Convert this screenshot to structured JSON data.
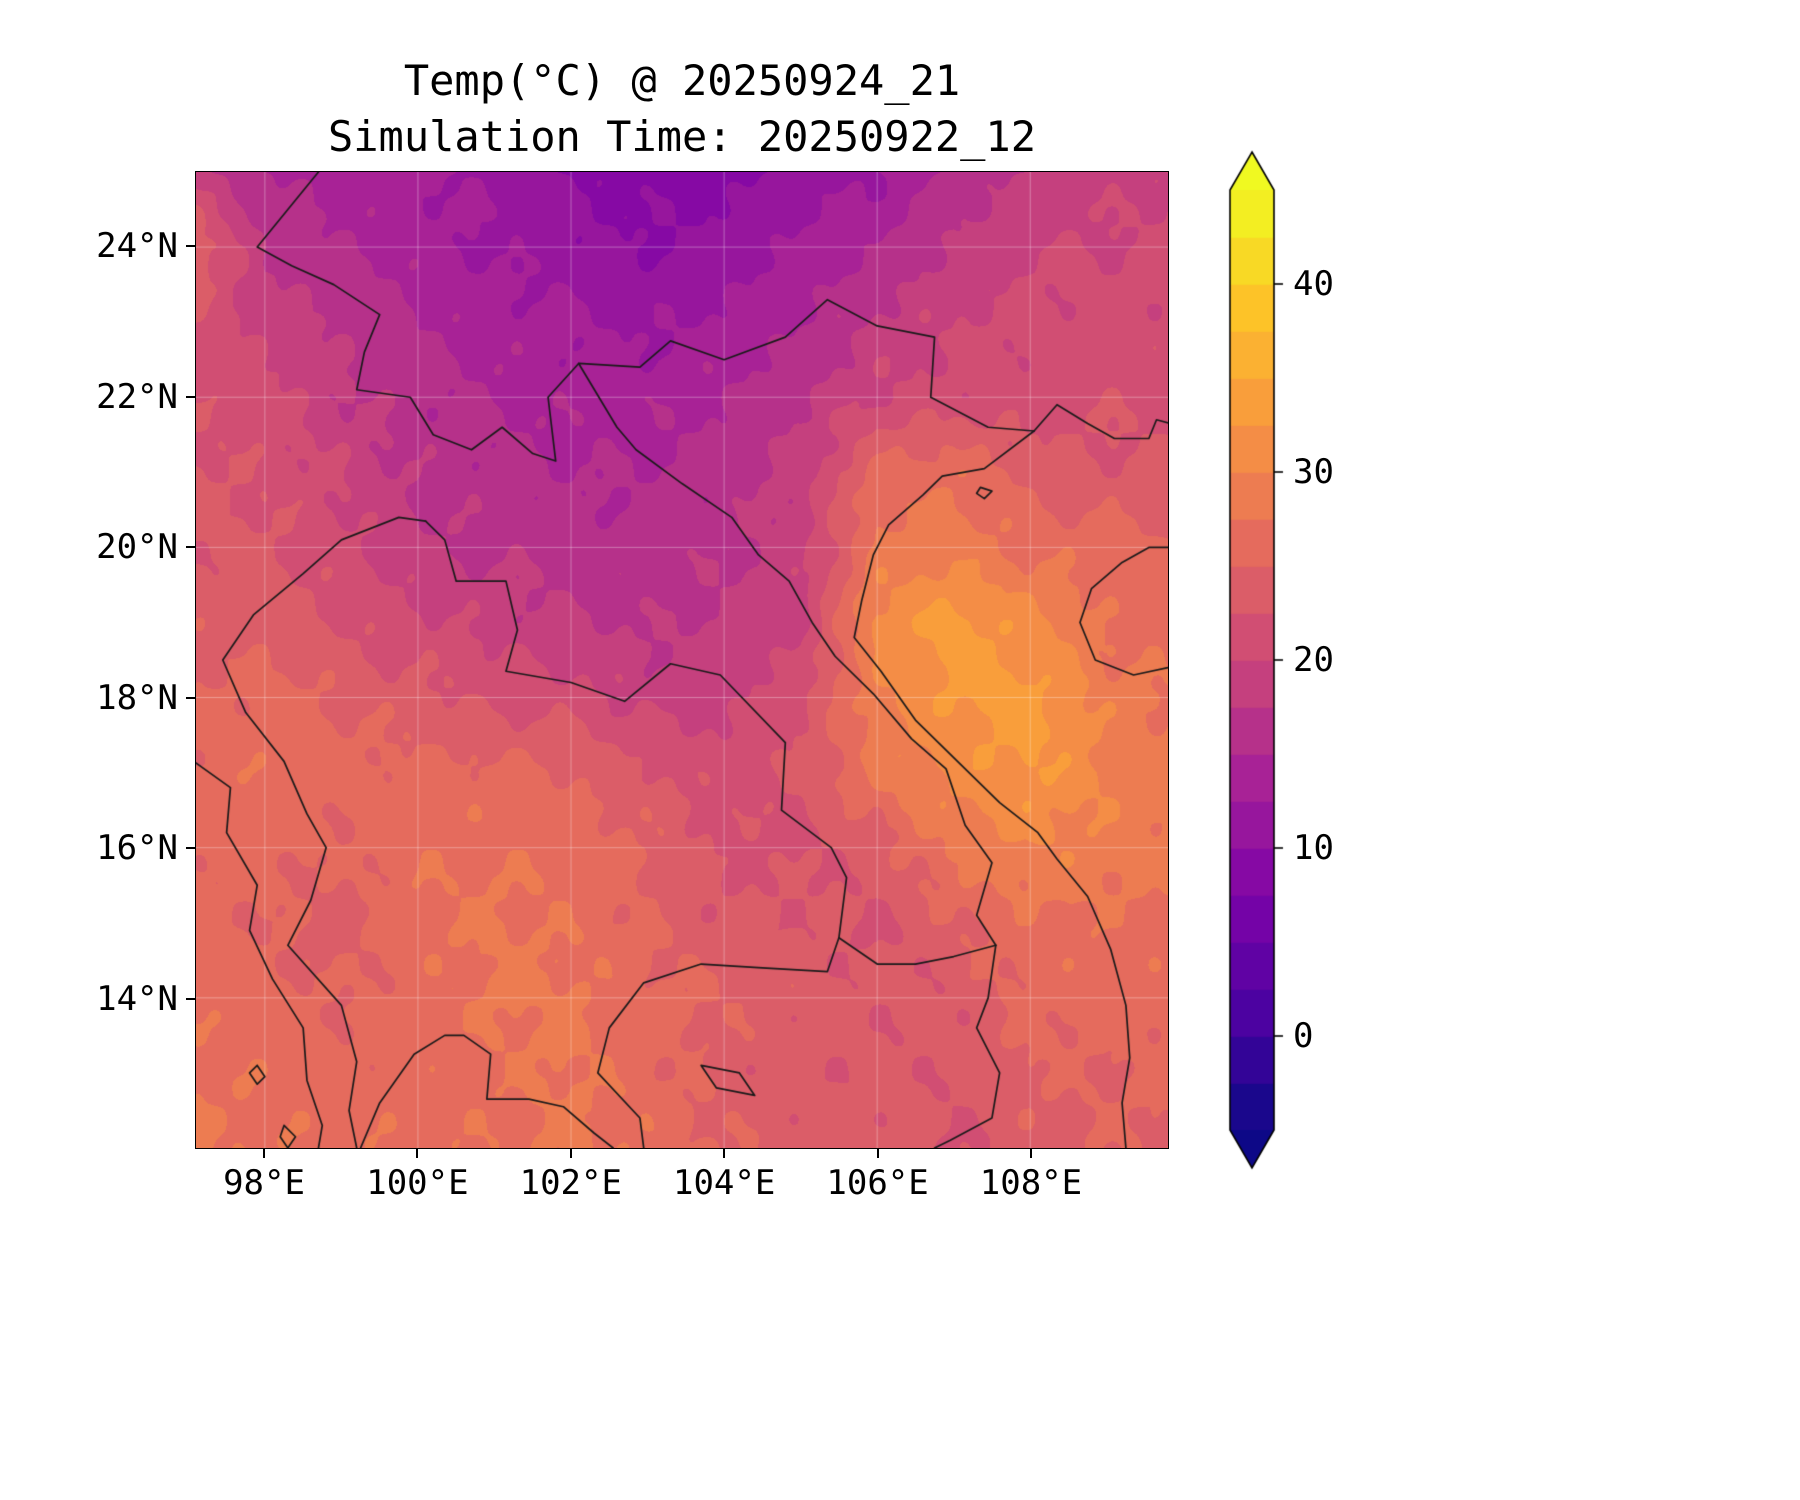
{
  "chart_data": {
    "type": "heatmap",
    "title": "Temp(°C) @ 20250924_21",
    "subtitle": "Simulation Time: 20250922_12",
    "lon_range": [
      97.1,
      109.8
    ],
    "lat_range": [
      12.0,
      25.0
    ],
    "x_axis": {
      "ticks": [
        {
          "value": 98,
          "label": "98°E"
        },
        {
          "value": 100,
          "label": "100°E"
        },
        {
          "value": 102,
          "label": "102°E"
        },
        {
          "value": 104,
          "label": "104°E"
        },
        {
          "value": 106,
          "label": "106°E"
        },
        {
          "value": 108,
          "label": "108°E"
        }
      ]
    },
    "y_axis": {
      "ticks": [
        {
          "value": 24,
          "label": "24°N"
        },
        {
          "value": 22,
          "label": "22°N"
        },
        {
          "value": 20,
          "label": "20°N"
        },
        {
          "value": 18,
          "label": "18°N"
        },
        {
          "value": 16,
          "label": "16°N"
        },
        {
          "value": 14,
          "label": "14°N"
        }
      ]
    },
    "contour_levels": {
      "min": -5,
      "max": 45,
      "step": 2.5
    },
    "colormap": {
      "name": "plasma",
      "stops": [
        [
          0.0,
          "#0d0887"
        ],
        [
          0.125,
          "#4c02a1"
        ],
        [
          0.25,
          "#7e03a8"
        ],
        [
          0.375,
          "#a82296"
        ],
        [
          0.5,
          "#cc4778"
        ],
        [
          0.625,
          "#e56b5d"
        ],
        [
          0.75,
          "#f89540"
        ],
        [
          0.875,
          "#fdc328"
        ],
        [
          1.0,
          "#f0f921"
        ]
      ]
    },
    "colorbar": {
      "extend": "both",
      "ticks": [
        {
          "value": 40,
          "label": "40"
        },
        {
          "value": 30,
          "label": "30"
        },
        {
          "value": 20,
          "label": "20"
        },
        {
          "value": 10,
          "label": "10"
        },
        {
          "value": 0,
          "label": "0"
        }
      ]
    },
    "grid": {
      "lons": [
        97,
        98,
        99,
        100,
        101,
        102,
        103,
        104,
        105,
        106,
        107,
        108,
        109,
        110
      ],
      "lats": [
        25,
        24,
        23,
        22,
        21,
        20,
        19,
        18,
        17,
        16,
        15,
        14,
        13,
        12
      ],
      "values": [
        [
          19,
          15,
          14,
          13,
          12,
          10,
          9,
          9,
          11,
          12,
          16,
          18,
          19,
          20
        ],
        [
          26,
          17,
          15,
          14,
          12,
          11,
          10,
          11,
          13,
          15,
          18,
          20,
          20,
          21
        ],
        [
          22,
          19,
          17,
          15,
          14,
          13,
          12,
          13,
          15,
          18,
          20,
          21,
          21,
          21
        ],
        [
          22,
          21,
          18,
          16,
          15,
          14,
          14,
          15,
          17,
          20,
          21,
          21,
          22,
          22
        ],
        [
          23,
          22,
          20,
          17,
          16,
          15,
          15,
          16,
          19,
          26,
          27,
          24,
          23,
          23
        ],
        [
          23,
          23,
          21,
          18,
          17,
          16,
          16,
          17,
          19,
          28,
          29,
          27,
          26,
          25
        ],
        [
          24,
          24,
          22,
          21,
          19,
          18,
          17,
          18,
          19,
          31,
          33.5,
          31,
          27,
          26
        ],
        [
          25,
          26,
          25,
          23,
          22,
          21,
          19,
          19,
          22,
          29,
          33,
          33.5,
          29,
          27
        ],
        [
          26,
          27,
          26,
          26,
          26,
          25,
          23,
          21,
          23,
          28,
          31,
          33,
          30,
          28
        ],
        [
          26,
          26,
          25,
          27,
          27,
          27,
          25,
          22,
          22,
          24,
          28,
          30,
          29,
          28
        ],
        [
          26,
          25,
          24,
          27,
          28,
          27,
          25,
          23,
          23,
          22,
          25,
          27,
          27,
          27
        ],
        [
          27,
          26,
          25,
          26,
          28,
          28,
          26,
          25,
          24,
          23,
          23,
          26,
          26,
          26
        ],
        [
          27,
          27,
          26,
          26,
          27,
          28,
          26,
          24,
          23,
          23,
          23,
          25,
          25,
          26
        ],
        [
          28,
          27,
          27,
          27,
          27,
          28,
          27,
          25,
          24,
          24,
          22,
          24,
          25,
          25
        ]
      ]
    },
    "borders": {
      "color": "#1a1a1a",
      "polylines": [
        [
          [
            98.7,
            25.0
          ],
          [
            98.3,
            24.5
          ],
          [
            97.9,
            24.0
          ],
          [
            98.35,
            23.75
          ],
          [
            98.9,
            23.5
          ],
          [
            99.5,
            23.1
          ],
          [
            99.3,
            22.6
          ],
          [
            99.2,
            22.1
          ],
          [
            99.9,
            22.0
          ],
          [
            100.2,
            21.5
          ],
          [
            100.7,
            21.3
          ],
          [
            101.1,
            21.6
          ],
          [
            101.5,
            21.25
          ],
          [
            101.8,
            21.15
          ],
          [
            101.7,
            22.0
          ],
          [
            102.1,
            22.45
          ],
          [
            102.9,
            22.4
          ],
          [
            103.3,
            22.75
          ],
          [
            104.0,
            22.5
          ],
          [
            104.8,
            22.8
          ],
          [
            105.35,
            23.3
          ],
          [
            106.0,
            22.95
          ],
          [
            106.75,
            22.8
          ],
          [
            106.7,
            22.0
          ],
          [
            107.45,
            21.6
          ],
          [
            108.05,
            21.55
          ]
        ],
        [
          [
            108.05,
            21.55
          ],
          [
            107.4,
            21.05
          ],
          [
            106.85,
            20.95
          ],
          [
            106.6,
            20.7
          ],
          [
            106.15,
            20.3
          ],
          [
            105.95,
            19.9
          ],
          [
            105.8,
            19.3
          ],
          [
            105.7,
            18.8
          ],
          [
            106.05,
            18.35
          ],
          [
            106.5,
            17.7
          ],
          [
            107.05,
            17.15
          ],
          [
            107.6,
            16.6
          ],
          [
            108.1,
            16.2
          ],
          [
            108.35,
            15.85
          ],
          [
            108.75,
            15.35
          ],
          [
            109.05,
            14.65
          ],
          [
            109.25,
            13.9
          ],
          [
            109.3,
            13.2
          ],
          [
            109.2,
            12.6
          ],
          [
            109.25,
            12.0
          ]
        ],
        [
          [
            100.1,
            20.35
          ],
          [
            99.75,
            20.4
          ],
          [
            99.0,
            20.1
          ],
          [
            98.5,
            19.65
          ],
          [
            97.85,
            19.1
          ],
          [
            97.45,
            18.5
          ],
          [
            97.75,
            17.8
          ],
          [
            98.25,
            17.15
          ],
          [
            98.55,
            16.45
          ],
          [
            98.8,
            16.0
          ],
          [
            98.6,
            15.3
          ],
          [
            98.3,
            14.7
          ],
          [
            99.0,
            13.9
          ],
          [
            99.2,
            13.15
          ],
          [
            99.1,
            12.5
          ],
          [
            99.2,
            12.0
          ]
        ],
        [
          [
            97.0,
            17.2
          ],
          [
            97.55,
            16.8
          ],
          [
            97.5,
            16.2
          ],
          [
            97.9,
            15.5
          ],
          [
            97.8,
            14.9
          ],
          [
            98.1,
            14.25
          ],
          [
            98.5,
            13.6
          ],
          [
            98.55,
            12.9
          ],
          [
            98.75,
            12.3
          ],
          [
            98.7,
            12.0
          ]
        ],
        [
          [
            98.25,
            12.3
          ],
          [
            98.4,
            12.15
          ],
          [
            98.3,
            12.0
          ],
          [
            98.2,
            12.15
          ],
          [
            98.25,
            12.3
          ]
        ],
        [
          [
            97.9,
            13.1
          ],
          [
            98.0,
            12.95
          ],
          [
            97.9,
            12.85
          ],
          [
            97.8,
            13.0
          ],
          [
            97.9,
            13.1
          ]
        ],
        [
          [
            100.1,
            20.35
          ],
          [
            100.35,
            20.1
          ],
          [
            100.5,
            19.55
          ],
          [
            101.15,
            19.55
          ],
          [
            101.3,
            18.9
          ],
          [
            101.15,
            18.35
          ],
          [
            102.0,
            18.2
          ],
          [
            102.7,
            17.95
          ],
          [
            103.3,
            18.45
          ],
          [
            103.95,
            18.3
          ],
          [
            104.8,
            17.4
          ],
          [
            104.75,
            16.5
          ],
          [
            105.4,
            16.0
          ],
          [
            105.6,
            15.6
          ],
          [
            105.5,
            14.8
          ]
        ],
        [
          [
            102.1,
            22.45
          ],
          [
            102.6,
            21.6
          ],
          [
            102.85,
            21.3
          ],
          [
            103.45,
            20.85
          ],
          [
            104.1,
            20.4
          ],
          [
            104.45,
            19.9
          ],
          [
            104.85,
            19.55
          ],
          [
            105.15,
            19.0
          ],
          [
            105.45,
            18.55
          ],
          [
            105.95,
            18.05
          ],
          [
            106.45,
            17.45
          ],
          [
            106.9,
            17.05
          ],
          [
            107.15,
            16.3
          ],
          [
            107.5,
            15.8
          ],
          [
            107.3,
            15.1
          ],
          [
            107.55,
            14.7
          ]
        ],
        [
          [
            105.5,
            14.8
          ],
          [
            106.0,
            14.45
          ],
          [
            106.5,
            14.45
          ],
          [
            107.0,
            14.55
          ],
          [
            107.55,
            14.7
          ]
        ],
        [
          [
            105.5,
            14.8
          ],
          [
            105.35,
            14.35
          ],
          [
            104.5,
            14.4
          ],
          [
            103.7,
            14.45
          ],
          [
            102.95,
            14.2
          ],
          [
            102.5,
            13.6
          ],
          [
            102.35,
            13.0
          ],
          [
            102.9,
            12.4
          ],
          [
            102.95,
            12.0
          ]
        ],
        [
          [
            107.55,
            14.7
          ],
          [
            107.45,
            14.0
          ],
          [
            107.3,
            13.6
          ],
          [
            107.6,
            13.0
          ],
          [
            107.5,
            12.4
          ],
          [
            106.95,
            12.1
          ],
          [
            106.75,
            12.0
          ]
        ],
        [
          [
            99.25,
            12.0
          ],
          [
            99.5,
            12.6
          ],
          [
            99.95,
            13.25
          ],
          [
            100.35,
            13.5
          ],
          [
            100.6,
            13.5
          ],
          [
            100.95,
            13.25
          ],
          [
            100.9,
            12.65
          ],
          [
            101.45,
            12.65
          ],
          [
            101.9,
            12.55
          ],
          [
            102.3,
            12.2
          ],
          [
            102.55,
            12.0
          ]
        ],
        [
          [
            108.05,
            21.55
          ],
          [
            108.35,
            21.9
          ],
          [
            108.75,
            21.65
          ],
          [
            109.1,
            21.45
          ],
          [
            109.55,
            21.45
          ],
          [
            109.65,
            21.7
          ],
          [
            110.0,
            21.6
          ]
        ],
        [
          [
            110.0,
            20.0
          ],
          [
            109.55,
            20.0
          ],
          [
            109.2,
            19.8
          ],
          [
            108.8,
            19.45
          ],
          [
            108.65,
            19.0
          ],
          [
            108.85,
            18.5
          ],
          [
            109.35,
            18.3
          ],
          [
            109.8,
            18.4
          ],
          [
            110.0,
            18.55
          ]
        ],
        [
          [
            107.35,
            20.8
          ],
          [
            107.5,
            20.75
          ],
          [
            107.4,
            20.65
          ],
          [
            107.3,
            20.72
          ],
          [
            107.35,
            20.8
          ]
        ],
        [
          [
            103.7,
            13.1
          ],
          [
            104.2,
            13.0
          ],
          [
            104.4,
            12.7
          ],
          [
            103.9,
            12.8
          ],
          [
            103.7,
            13.1
          ]
        ]
      ]
    }
  }
}
